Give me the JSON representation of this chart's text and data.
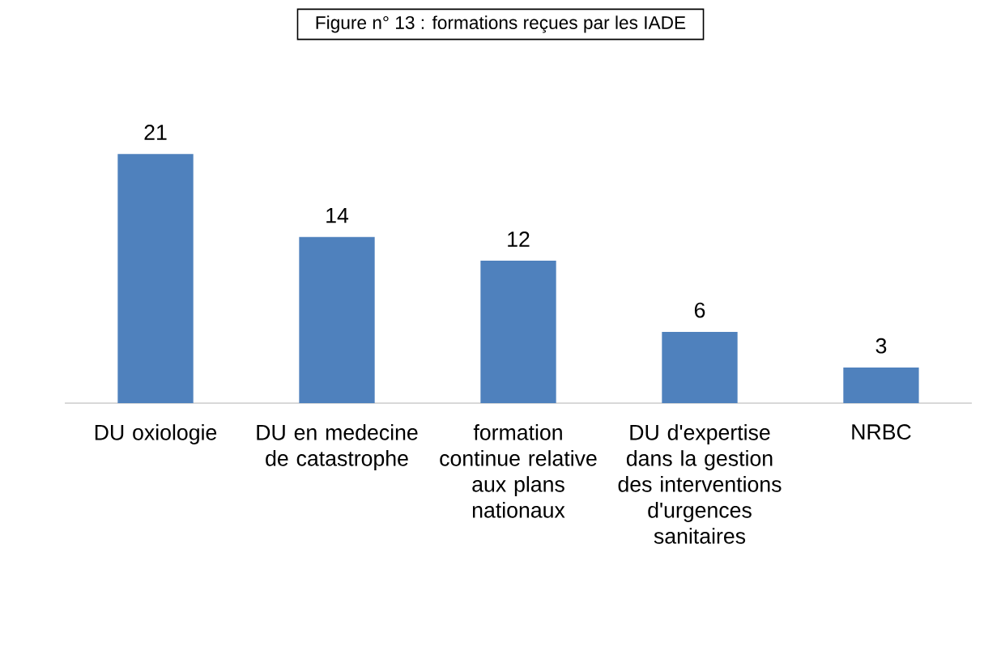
{
  "chart_data": {
    "type": "bar",
    "title": "Figure n° 13 : formations reçues par les IADE",
    "categories": [
      "DU oxiologie",
      "DU en medecine de catastrophe",
      "formation continue relative aux plans nationaux",
      "DU d'expertise dans la gestion des interventions d'urgences sanitaires",
      "NRBC"
    ],
    "values": [
      21,
      14,
      12,
      6,
      3
    ],
    "color": "#4f81bd",
    "data_labels": true
  }
}
